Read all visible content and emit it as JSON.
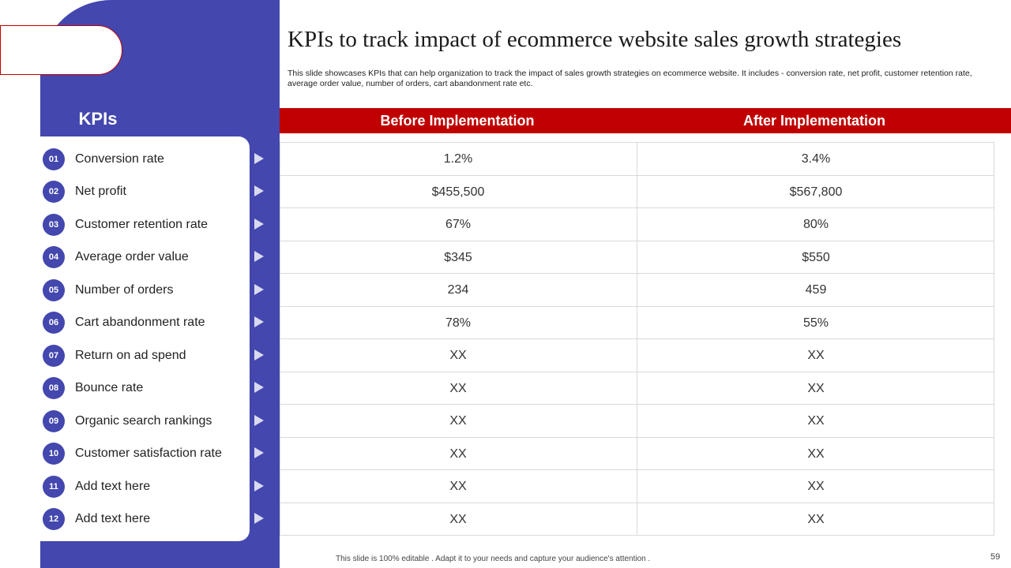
{
  "title": "KPIs to track impact of ecommerce website sales growth strategies",
  "description": "This slide showcases KPIs that can help organization to track the impact of sales growth strategies on ecommerce website. It includes -  conversion rate, net profit, customer retention rate, average order value, number of orders, cart abandonment rate etc.",
  "kpi_heading": "KPIs",
  "columns": {
    "before": "Before Implementation",
    "after": "After Implementation"
  },
  "kpis": [
    {
      "num": "01",
      "label": "Conversion rate",
      "before": "1.2%",
      "after": "3.4%"
    },
    {
      "num": "02",
      "label": "Net profit",
      "before": "$455,500",
      "after": "$567,800"
    },
    {
      "num": "03",
      "label": "Customer retention rate",
      "before": "67%",
      "after": "80%"
    },
    {
      "num": "04",
      "label": "Average order value",
      "before": "$345",
      "after": "$550"
    },
    {
      "num": "05",
      "label": "Number of orders",
      "before": "234",
      "after": "459"
    },
    {
      "num": "06",
      "label": "Cart abandonment rate",
      "before": "78%",
      "after": "55%"
    },
    {
      "num": "07",
      "label": "Return on ad spend",
      "before": "XX",
      "after": "XX"
    },
    {
      "num": "08",
      "label": "Bounce rate",
      "before": "XX",
      "after": "XX"
    },
    {
      "num": "09",
      "label": "Organic search rankings",
      "before": "XX",
      "after": "XX"
    },
    {
      "num": "10",
      "label": "Customer satisfaction rate",
      "before": "XX",
      "after": "XX"
    },
    {
      "num": "11",
      "label": "Add text here",
      "before": "XX",
      "after": "XX"
    },
    {
      "num": "12",
      "label": "Add text here",
      "before": "XX",
      "after": "XX"
    }
  ],
  "footer": "This slide is 100% editable . Adapt it to your needs and capture your audience's attention .",
  "page_number": "59",
  "colors": {
    "accent_blue": "#4347AE",
    "accent_red": "#C00000"
  }
}
